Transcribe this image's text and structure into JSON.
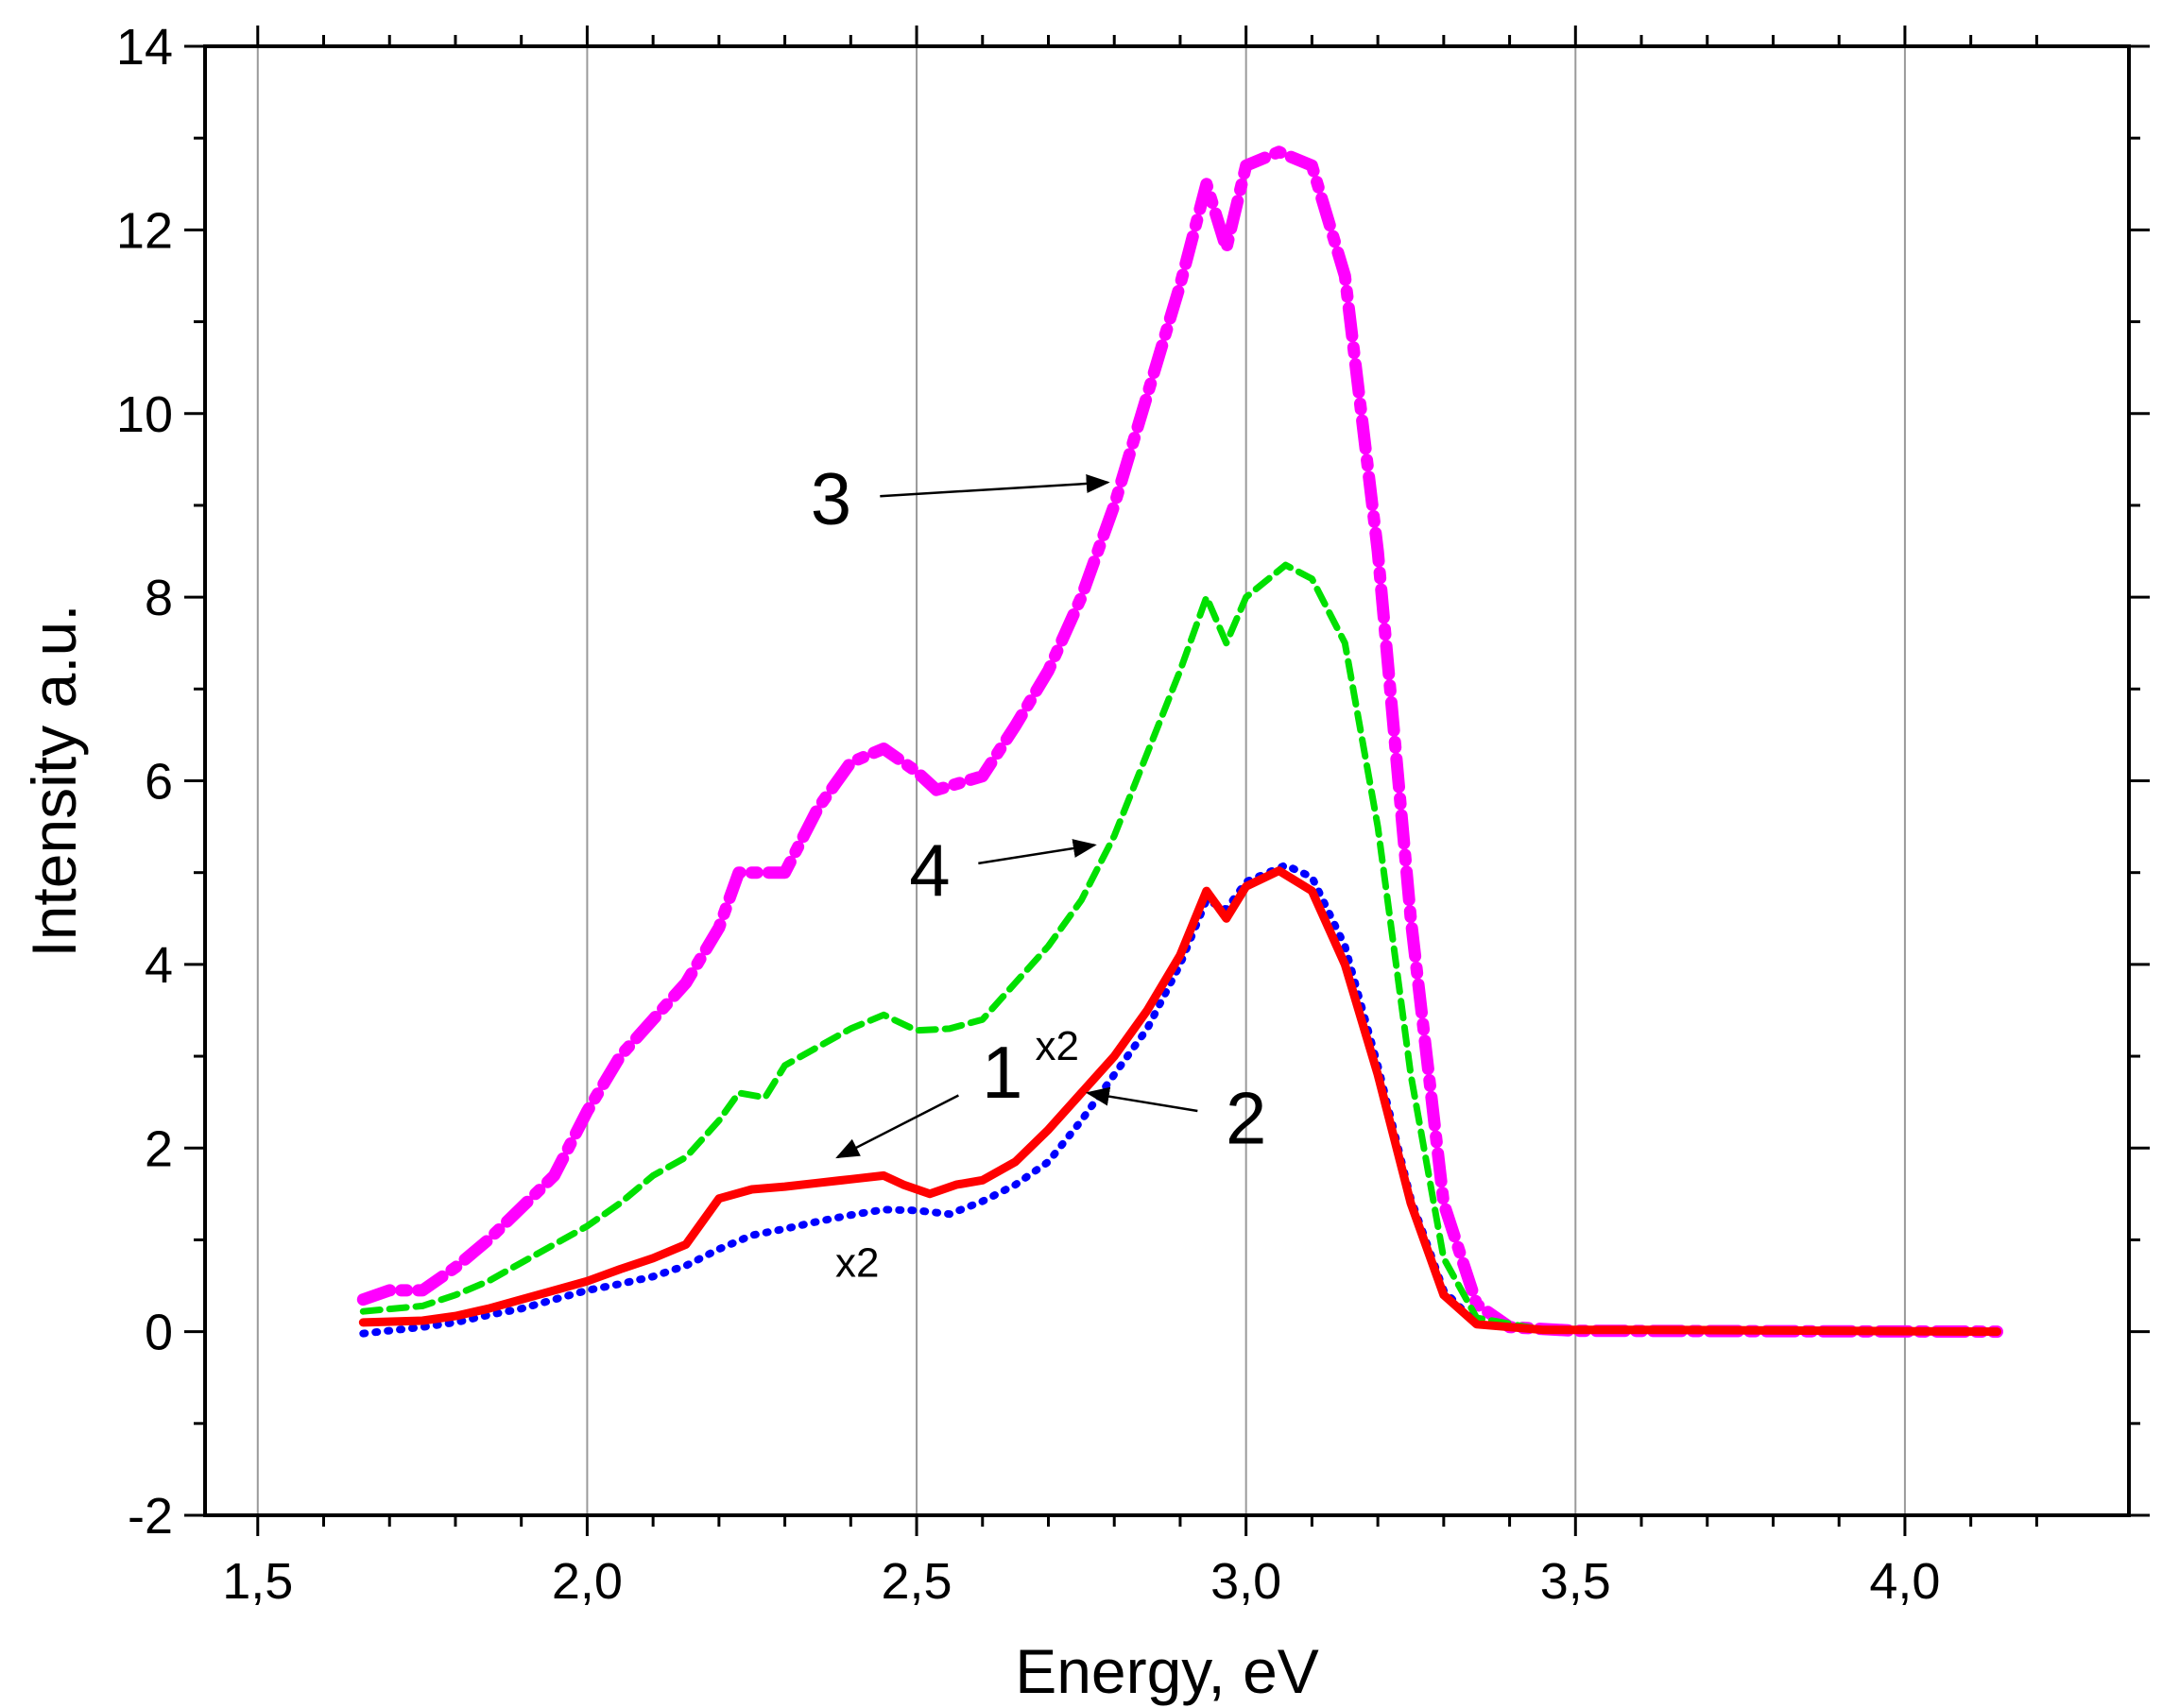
{
  "chart_data": {
    "type": "line",
    "xlabel": "Energy, eV",
    "ylabel": "Intensity a.u.",
    "xlim": [
      1.42,
      4.34
    ],
    "ylim": [
      -2,
      14
    ],
    "x_ticks": [
      1.5,
      2.0,
      2.5,
      3.0,
      3.5,
      4.0
    ],
    "x_tick_labels": [
      "1,5",
      "2,0",
      "2,5",
      "3,0",
      "3,5",
      "4,0"
    ],
    "y_ticks": [
      -2,
      0,
      2,
      4,
      6,
      8,
      10,
      12,
      14
    ],
    "y_tick_labels": [
      "-2",
      "0",
      "2",
      "4",
      "6",
      "8",
      "10",
      "12",
      "14"
    ],
    "vertical_grid": true,
    "series": [
      {
        "name": "1",
        "color": "#ff0000",
        "style": "solid",
        "points": [
          [
            1.66,
            0.1
          ],
          [
            1.75,
            0.12
          ],
          [
            1.8,
            0.17
          ],
          [
            1.85,
            0.25
          ],
          [
            1.9,
            0.35
          ],
          [
            1.95,
            0.45
          ],
          [
            2.0,
            0.55
          ],
          [
            2.05,
            0.68
          ],
          [
            2.1,
            0.8
          ],
          [
            2.15,
            0.95
          ],
          [
            2.2,
            1.45
          ],
          [
            2.25,
            1.55
          ],
          [
            2.3,
            1.58
          ],
          [
            2.35,
            1.62
          ],
          [
            2.4,
            1.66
          ],
          [
            2.45,
            1.7
          ],
          [
            2.48,
            1.6
          ],
          [
            2.52,
            1.5
          ],
          [
            2.56,
            1.6
          ],
          [
            2.6,
            1.65
          ],
          [
            2.65,
            1.85
          ],
          [
            2.7,
            2.2
          ],
          [
            2.75,
            2.6
          ],
          [
            2.8,
            3.0
          ],
          [
            2.85,
            3.5
          ],
          [
            2.9,
            4.1
          ],
          [
            2.94,
            4.8
          ],
          [
            2.97,
            4.5
          ],
          [
            3.0,
            4.85
          ],
          [
            3.05,
            5.02
          ],
          [
            3.1,
            4.8
          ],
          [
            3.15,
            4.0
          ],
          [
            3.2,
            2.8
          ],
          [
            3.25,
            1.4
          ],
          [
            3.3,
            0.4
          ],
          [
            3.35,
            0.08
          ],
          [
            3.45,
            0.02
          ],
          [
            3.6,
            0.02
          ],
          [
            4.14,
            0.0
          ]
        ]
      },
      {
        "name": "2",
        "color": "#0000ff",
        "style": "dotted",
        "points": [
          [
            1.66,
            -0.02
          ],
          [
            1.75,
            0.05
          ],
          [
            1.8,
            0.1
          ],
          [
            1.85,
            0.18
          ],
          [
            1.9,
            0.25
          ],
          [
            1.95,
            0.35
          ],
          [
            2.0,
            0.45
          ],
          [
            2.05,
            0.52
          ],
          [
            2.1,
            0.6
          ],
          [
            2.15,
            0.72
          ],
          [
            2.2,
            0.9
          ],
          [
            2.25,
            1.05
          ],
          [
            2.3,
            1.12
          ],
          [
            2.35,
            1.2
          ],
          [
            2.4,
            1.27
          ],
          [
            2.45,
            1.33
          ],
          [
            2.5,
            1.32
          ],
          [
            2.55,
            1.28
          ],
          [
            2.6,
            1.42
          ],
          [
            2.65,
            1.6
          ],
          [
            2.7,
            1.85
          ],
          [
            2.75,
            2.3
          ],
          [
            2.8,
            2.8
          ],
          [
            2.85,
            3.3
          ],
          [
            2.9,
            4.0
          ],
          [
            2.94,
            4.7
          ],
          [
            2.97,
            4.6
          ],
          [
            3.0,
            4.9
          ],
          [
            3.06,
            5.08
          ],
          [
            3.1,
            4.95
          ],
          [
            3.15,
            4.2
          ],
          [
            3.2,
            2.9
          ],
          [
            3.25,
            1.45
          ],
          [
            3.3,
            0.45
          ],
          [
            3.35,
            0.08
          ],
          [
            3.45,
            0.02
          ],
          [
            3.6,
            0.02
          ],
          [
            4.14,
            0.0
          ]
        ]
      },
      {
        "name": "3",
        "color": "#ff00ff",
        "style": "dashdot",
        "points": [
          [
            1.66,
            0.35
          ],
          [
            1.7,
            0.45
          ],
          [
            1.75,
            0.45
          ],
          [
            1.8,
            0.7
          ],
          [
            1.85,
            1.0
          ],
          [
            1.9,
            1.35
          ],
          [
            1.95,
            1.7
          ],
          [
            2.0,
            2.4
          ],
          [
            2.05,
            3.0
          ],
          [
            2.1,
            3.4
          ],
          [
            2.15,
            3.8
          ],
          [
            2.2,
            4.4
          ],
          [
            2.23,
            5.0
          ],
          [
            2.3,
            5.0
          ],
          [
            2.35,
            5.7
          ],
          [
            2.4,
            6.2
          ],
          [
            2.45,
            6.35
          ],
          [
            2.5,
            6.1
          ],
          [
            2.53,
            5.9
          ],
          [
            2.6,
            6.05
          ],
          [
            2.65,
            6.6
          ],
          [
            2.7,
            7.2
          ],
          [
            2.75,
            8.0
          ],
          [
            2.8,
            9.0
          ],
          [
            2.85,
            10.2
          ],
          [
            2.9,
            11.4
          ],
          [
            2.94,
            12.5
          ],
          [
            2.97,
            11.8
          ],
          [
            3.0,
            12.7
          ],
          [
            3.05,
            12.85
          ],
          [
            3.1,
            12.7
          ],
          [
            3.15,
            11.5
          ],
          [
            3.2,
            8.5
          ],
          [
            3.25,
            4.5
          ],
          [
            3.3,
            1.4
          ],
          [
            3.35,
            0.3
          ],
          [
            3.4,
            0.05
          ],
          [
            3.5,
            0.01
          ],
          [
            4.14,
            0.0
          ]
        ]
      },
      {
        "name": "4",
        "color": "#00e000",
        "style": "dashed",
        "points": [
          [
            1.66,
            0.22
          ],
          [
            1.75,
            0.28
          ],
          [
            1.8,
            0.4
          ],
          [
            1.85,
            0.55
          ],
          [
            1.9,
            0.75
          ],
          [
            1.95,
            0.95
          ],
          [
            2.0,
            1.15
          ],
          [
            2.05,
            1.4
          ],
          [
            2.1,
            1.7
          ],
          [
            2.15,
            1.9
          ],
          [
            2.2,
            2.3
          ],
          [
            2.23,
            2.6
          ],
          [
            2.27,
            2.55
          ],
          [
            2.3,
            2.9
          ],
          [
            2.35,
            3.1
          ],
          [
            2.4,
            3.3
          ],
          [
            2.45,
            3.45
          ],
          [
            2.5,
            3.28
          ],
          [
            2.55,
            3.3
          ],
          [
            2.6,
            3.4
          ],
          [
            2.65,
            3.8
          ],
          [
            2.7,
            4.2
          ],
          [
            2.75,
            4.7
          ],
          [
            2.8,
            5.4
          ],
          [
            2.85,
            6.3
          ],
          [
            2.9,
            7.2
          ],
          [
            2.94,
            8.0
          ],
          [
            2.97,
            7.5
          ],
          [
            3.0,
            8.0
          ],
          [
            3.06,
            8.35
          ],
          [
            3.1,
            8.2
          ],
          [
            3.15,
            7.5
          ],
          [
            3.2,
            5.5
          ],
          [
            3.25,
            2.8
          ],
          [
            3.3,
            0.8
          ],
          [
            3.35,
            0.15
          ],
          [
            3.45,
            0.02
          ],
          [
            3.6,
            0.02
          ],
          [
            4.14,
            0.0
          ]
        ]
      }
    ],
    "annotations": [
      {
        "label": "3",
        "text_at": [
          2.37,
          8.8
        ],
        "arrow_to": [
          2.79,
          9.25
        ]
      },
      {
        "label": "4",
        "text_at": [
          2.52,
          4.75
        ],
        "arrow_to": [
          2.77,
          5.3
        ]
      },
      {
        "label": "1",
        "sup": "x2",
        "text_at": [
          2.63,
          2.55
        ],
        "arrow_to": [
          2.38,
          1.9
        ]
      },
      {
        "label": "2",
        "text_at": [
          3.0,
          2.05
        ],
        "arrow_to": [
          2.76,
          2.6
        ]
      },
      {
        "label": "x2",
        "text_at": [
          2.41,
          0.6
        ]
      }
    ]
  }
}
